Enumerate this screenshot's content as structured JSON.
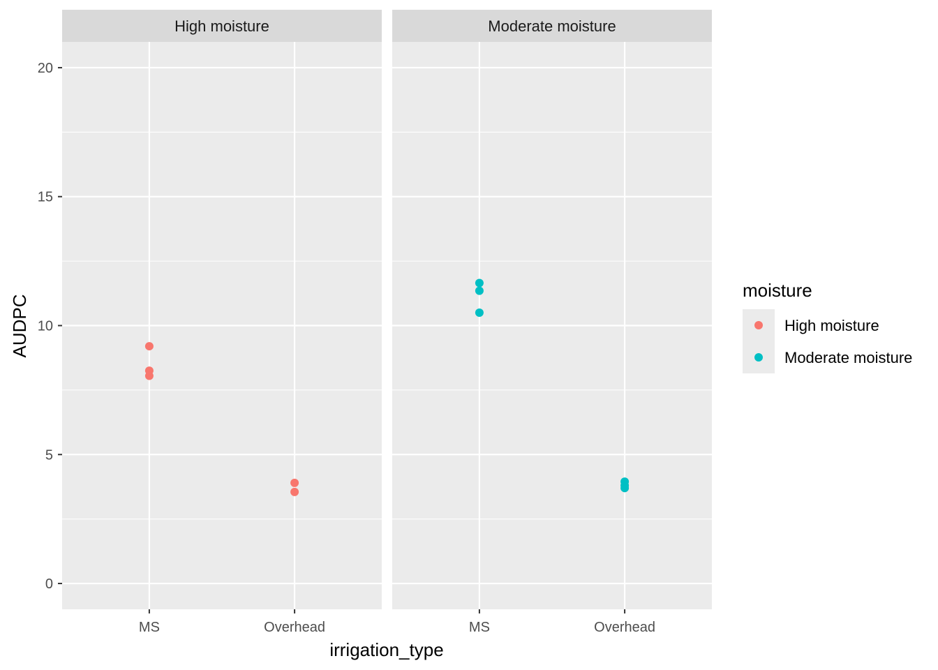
{
  "chart_data": {
    "type": "scatter",
    "facet_by": "moisture",
    "panels": [
      {
        "label": "High moisture",
        "color": "#F8766D",
        "points": [
          {
            "x": "MS",
            "y": 9.2
          },
          {
            "x": "MS",
            "y": 8.25
          },
          {
            "x": "MS",
            "y": 8.05
          },
          {
            "x": "Overhead",
            "y": 3.9
          },
          {
            "x": "Overhead",
            "y": 3.55
          }
        ]
      },
      {
        "label": "Moderate moisture",
        "color": "#00BFC4",
        "points": [
          {
            "x": "MS",
            "y": 11.65
          },
          {
            "x": "MS",
            "y": 11.35
          },
          {
            "x": "MS",
            "y": 10.5
          },
          {
            "x": "Overhead",
            "y": 3.95
          },
          {
            "x": "Overhead",
            "y": 3.8
          },
          {
            "x": "Overhead",
            "y": 3.7
          }
        ]
      }
    ],
    "categories": [
      "MS",
      "Overhead"
    ],
    "xlabel": "irrigation_type",
    "ylabel": "AUDPC",
    "ylim": [
      -1,
      21
    ],
    "yticks": [
      0,
      5,
      10,
      15,
      20
    ],
    "grid": true,
    "legend": {
      "title": "moisture",
      "position": "right",
      "items": [
        {
          "label": "High moisture",
          "color": "#F8766D"
        },
        {
          "label": "Moderate moisture",
          "color": "#00BFC4"
        }
      ]
    },
    "colors": {
      "panel_background": "#EBEBEB",
      "strip_background": "#D9D9D9",
      "grid": "#FFFFFF"
    }
  }
}
